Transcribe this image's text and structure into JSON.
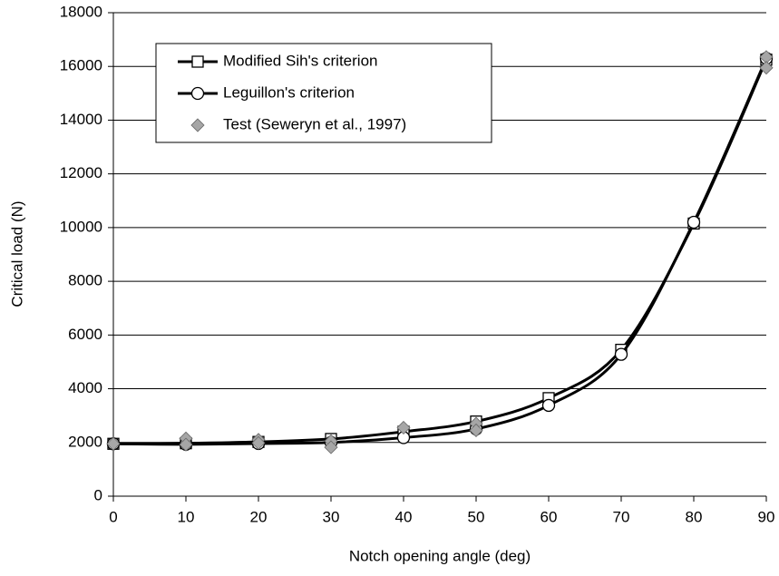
{
  "chart_data": {
    "type": "line",
    "xlabel": "Notch opening angle (deg)",
    "ylabel": "Critical load (N)",
    "x": [
      0,
      10,
      20,
      30,
      40,
      50,
      60,
      70,
      80,
      90
    ],
    "series": [
      {
        "name": "Modified Sih's criterion",
        "color": "#000000",
        "marker": "square",
        "values": [
          1950,
          1970,
          2020,
          2130,
          2400,
          2780,
          3650,
          5450,
          10150,
          16250
        ]
      },
      {
        "name": "Leguillon's criterion",
        "color": "#000000",
        "marker": "circle",
        "values": [
          1950,
          1930,
          1960,
          2000,
          2180,
          2500,
          3380,
          5280,
          10200,
          16300
        ]
      },
      {
        "name": "Test (Seweryn et al., 1997)",
        "color": "#a6a6a6",
        "marker": "diamond",
        "type": "scatter",
        "x": [
          0,
          10,
          10,
          20,
          20,
          30,
          30,
          40,
          50,
          50,
          90,
          90
        ],
        "values": [
          1950,
          2150,
          1920,
          2100,
          1980,
          2050,
          1820,
          2550,
          2700,
          2450,
          16350,
          15950
        ]
      }
    ],
    "xlim": [
      0,
      90
    ],
    "xticks": [
      0,
      10,
      20,
      30,
      40,
      50,
      60,
      70,
      80,
      90
    ],
    "ylim": [
      0,
      18000
    ],
    "yticks": [
      0,
      2000,
      4000,
      6000,
      8000,
      10000,
      12000,
      14000,
      16000,
      18000
    ],
    "grid": true,
    "legend": "upper left"
  }
}
